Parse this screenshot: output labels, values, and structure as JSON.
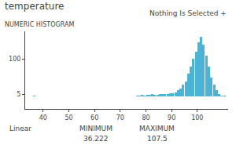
{
  "chart_data": {
    "type": "histogram",
    "title": "temperature",
    "subtitle": "NUMERIC HISTOGRAM",
    "annotations": [
      "Nothing Is Selected +",
      "Linear",
      "MINIMUM",
      "36.222",
      "MAXIMUM",
      "107.5"
    ],
    "bins": [
      33,
      34,
      35,
      36,
      37,
      38,
      39,
      40,
      41,
      42,
      43,
      44,
      45,
      46,
      47,
      48,
      49,
      50,
      51,
      52,
      53,
      54,
      55,
      56,
      57,
      58,
      59,
      60,
      61,
      62,
      63,
      64,
      65,
      66,
      67,
      68,
      69,
      70,
      71,
      72,
      73,
      74,
      75,
      76,
      77,
      78,
      79,
      80,
      81,
      82,
      83,
      84,
      85,
      86,
      87,
      88,
      89,
      90,
      91,
      92,
      93,
      94,
      95,
      96,
      97,
      98,
      99,
      100,
      101,
      102,
      103,
      104,
      105,
      106,
      107,
      108,
      109,
      110,
      111,
      112
    ],
    "values": [
      0,
      0,
      0,
      1,
      0,
      0,
      0,
      0,
      0,
      0,
      0,
      0,
      0,
      0,
      0,
      0,
      0,
      0,
      0,
      0,
      0,
      0,
      0,
      0,
      0,
      0,
      0,
      0,
      0,
      0,
      0,
      0,
      0,
      0,
      0,
      0,
      0,
      0,
      0,
      0,
      0,
      0,
      0,
      1,
      2,
      3,
      2,
      4,
      3,
      5,
      4,
      4,
      6,
      5,
      5,
      6,
      7,
      8,
      9,
      15,
      20,
      30,
      40,
      60,
      80,
      100,
      120,
      145,
      160,
      140,
      110,
      80,
      50,
      30,
      15,
      5,
      2,
      1,
      0
    ],
    "color": "#4ab4d8",
    "xlim": [
      33,
      112
    ],
    "xticks": [
      40,
      50,
      60,
      70,
      80,
      90,
      100
    ],
    "ylim": [
      -35,
      175
    ],
    "yticks": [
      5,
      100
    ],
    "grid": false
  }
}
